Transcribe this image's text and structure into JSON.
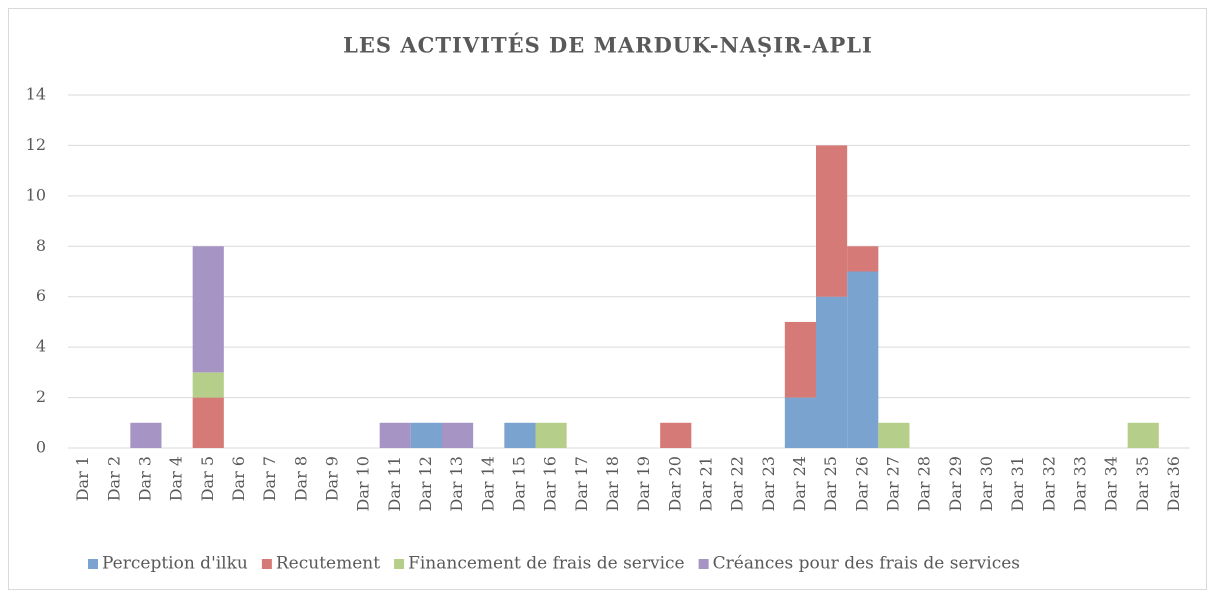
{
  "chart_data": {
    "type": "stacked_bar",
    "title": "LES ACTIVITÉS DE MARDUK-NAṢIR-APLI",
    "categories": [
      "Dar 1",
      "Dar 2",
      "Dar 3",
      "Dar 4",
      "Dar 5",
      "Dar 6",
      "Dar 7",
      "Dar 8",
      "Dar 9",
      "Dar 10",
      "Dar 11",
      "Dar 12",
      "Dar 13",
      "Dar 14",
      "Dar 15",
      "Dar 16",
      "Dar 17",
      "Dar 18",
      "Dar 19",
      "Dar 20",
      "Dar 21",
      "Dar 22",
      "Dar 23",
      "Dar 24",
      "Dar 25",
      "Dar 26",
      "Dar 27",
      "Dar 28",
      "Dar 29",
      "Dar 30",
      "Dar 31",
      "Dar 32",
      "Dar 33",
      "Dar 34",
      "Dar 35",
      "Dar 36"
    ],
    "series": [
      {
        "name": "Perception d'ilku",
        "color": "#7ba3d0",
        "values": [
          0,
          0,
          0,
          0,
          0,
          0,
          0,
          0,
          0,
          0,
          0,
          1,
          0,
          0,
          1,
          0,
          0,
          0,
          0,
          0,
          0,
          0,
          0,
          2,
          6,
          7,
          0,
          0,
          0,
          0,
          0,
          0,
          0,
          0,
          0,
          0
        ]
      },
      {
        "name": "Recutement",
        "color": "#d67a78",
        "values": [
          0,
          0,
          0,
          0,
          2,
          0,
          0,
          0,
          0,
          0,
          0,
          0,
          0,
          0,
          0,
          0,
          0,
          0,
          0,
          1,
          0,
          0,
          0,
          3,
          6,
          1,
          0,
          0,
          0,
          0,
          0,
          0,
          0,
          0,
          0,
          0
        ]
      },
      {
        "name": "Financement de frais de service",
        "color": "#b5cf8a",
        "values": [
          0,
          0,
          0,
          0,
          1,
          0,
          0,
          0,
          0,
          0,
          0,
          0,
          0,
          0,
          0,
          1,
          0,
          0,
          0,
          0,
          0,
          0,
          0,
          0,
          0,
          0,
          1,
          0,
          0,
          0,
          0,
          0,
          0,
          0,
          1,
          0
        ]
      },
      {
        "name": "Créances pour des frais de services",
        "color": "#a694c4",
        "values": [
          0,
          0,
          1,
          0,
          5,
          0,
          0,
          0,
          0,
          0,
          1,
          0,
          1,
          0,
          0,
          0,
          0,
          0,
          0,
          0,
          0,
          0,
          0,
          0,
          0,
          0,
          0,
          0,
          0,
          0,
          0,
          0,
          0,
          0,
          0,
          0
        ]
      }
    ],
    "ylim": [
      0,
      14
    ],
    "yticks": [
      0,
      2,
      4,
      6,
      8,
      10,
      12,
      14
    ],
    "grid": true,
    "legend": "bottom"
  }
}
